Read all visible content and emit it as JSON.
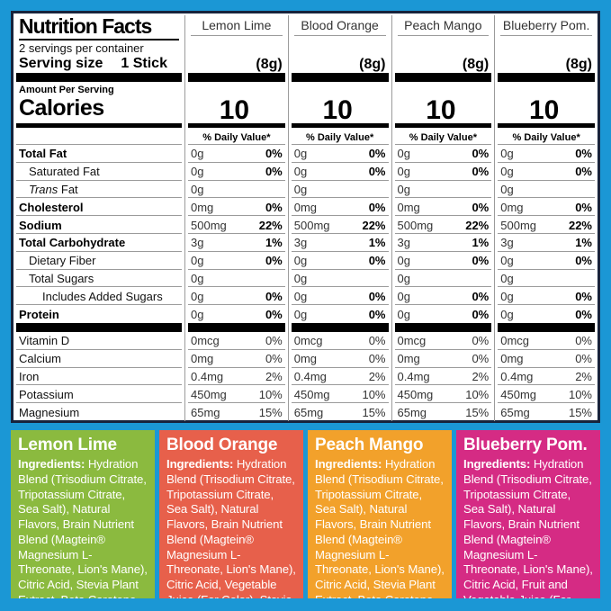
{
  "colors": {
    "background_blue": "#1b97d5",
    "panel_outline": "#17233c",
    "lemon_lime_green": "#8bba3f",
    "blood_orange_coral": "#e7604b",
    "peach_mango_orange": "#f2a12b",
    "blueberry_pom_magenta": "#d52b84"
  },
  "header": {
    "title": "Nutrition Facts",
    "servings": "2 servings per container",
    "serving_size_label": "Serving size",
    "serving_size_value": "1 Stick",
    "amount_per_serving": "Amount Per Serving",
    "calories_label": "Calories",
    "daily_value_label": "% Daily Value*"
  },
  "flavors": [
    {
      "name": "Lemon Lime",
      "serving_weight": "(8g)",
      "calories": "10"
    },
    {
      "name": "Blood Orange",
      "serving_weight": "(8g)",
      "calories": "10"
    },
    {
      "name": "Peach Mango",
      "serving_weight": "(8g)",
      "calories": "10"
    },
    {
      "name": "Blueberry Pom.",
      "serving_weight": "(8g)",
      "calories": "10"
    }
  ],
  "table": {
    "rows": [
      {
        "label": "Total Fat",
        "bold": true,
        "indent": 0,
        "cols": [
          {
            "amt": "0g",
            "pct": "0%"
          },
          {
            "amt": "0g",
            "pct": "0%"
          },
          {
            "amt": "0g",
            "pct": "0%"
          },
          {
            "amt": "0g",
            "pct": "0%"
          }
        ]
      },
      {
        "label": "Saturated Fat",
        "bold": false,
        "indent": 1,
        "cols": [
          {
            "amt": "0g",
            "pct": "0%"
          },
          {
            "amt": "0g",
            "pct": "0%"
          },
          {
            "amt": "0g",
            "pct": "0%"
          },
          {
            "amt": "0g",
            "pct": "0%"
          }
        ]
      },
      {
        "label_italic": "Trans ",
        "label": "Fat",
        "bold": false,
        "indent": 1,
        "cols": [
          {
            "amt": "0g"
          },
          {
            "amt": "0g"
          },
          {
            "amt": "0g"
          },
          {
            "amt": "0g"
          }
        ]
      },
      {
        "label": "Cholesterol",
        "bold": true,
        "indent": 0,
        "cols": [
          {
            "amt": "0mg",
            "pct": "0%"
          },
          {
            "amt": "0mg",
            "pct": "0%"
          },
          {
            "amt": "0mg",
            "pct": "0%"
          },
          {
            "amt": "0mg",
            "pct": "0%"
          }
        ]
      },
      {
        "label": "Sodium",
        "bold": true,
        "indent": 0,
        "cols": [
          {
            "amt": "500mg",
            "pct": "22%"
          },
          {
            "amt": "500mg",
            "pct": "22%"
          },
          {
            "amt": "500mg",
            "pct": "22%"
          },
          {
            "amt": "500mg",
            "pct": "22%"
          }
        ]
      },
      {
        "label": "Total Carbohydrate",
        "bold": true,
        "indent": 0,
        "cols": [
          {
            "amt": "3g",
            "pct": "1%"
          },
          {
            "amt": "3g",
            "pct": "1%"
          },
          {
            "amt": "3g",
            "pct": "1%"
          },
          {
            "amt": "3g",
            "pct": "1%"
          }
        ]
      },
      {
        "label": "Dietary Fiber",
        "bold": false,
        "indent": 1,
        "cols": [
          {
            "amt": "0g",
            "pct": "0%"
          },
          {
            "amt": "0g",
            "pct": "0%"
          },
          {
            "amt": "0g",
            "pct": "0%"
          },
          {
            "amt": "0g",
            "pct": "0%"
          }
        ]
      },
      {
        "label": "Total Sugars",
        "bold": false,
        "indent": 1,
        "cols": [
          {
            "amt": "0g"
          },
          {
            "amt": "0g"
          },
          {
            "amt": "0g"
          },
          {
            "amt": "0g"
          }
        ]
      },
      {
        "label": "Includes Added Sugars",
        "bold": false,
        "indent": 2,
        "cols": [
          {
            "amt": "0g",
            "pct": "0%"
          },
          {
            "amt": "0g",
            "pct": "0%"
          },
          {
            "amt": "0g",
            "pct": "0%"
          },
          {
            "amt": "0g",
            "pct": "0%"
          }
        ]
      },
      {
        "label": "Protein",
        "bold": true,
        "indent": 0,
        "cols": [
          {
            "amt": "0g",
            "pct": "0%"
          },
          {
            "amt": "0g",
            "pct": "0%"
          },
          {
            "amt": "0g",
            "pct": "0%"
          },
          {
            "amt": "0g",
            "pct": "0%"
          }
        ]
      }
    ],
    "vitamins": [
      {
        "label": "Vitamin D",
        "bold": false,
        "indent": 0,
        "cols": [
          {
            "amt": "0mcg",
            "pct": "0%"
          },
          {
            "amt": "0mcg",
            "pct": "0%"
          },
          {
            "amt": "0mcg",
            "pct": "0%"
          },
          {
            "amt": "0mcg",
            "pct": "0%"
          }
        ]
      },
      {
        "label": "Calcium",
        "bold": false,
        "indent": 0,
        "cols": [
          {
            "amt": "0mg",
            "pct": "0%"
          },
          {
            "amt": "0mg",
            "pct": "0%"
          },
          {
            "amt": "0mg",
            "pct": "0%"
          },
          {
            "amt": "0mg",
            "pct": "0%"
          }
        ]
      },
      {
        "label": "Iron",
        "bold": false,
        "indent": 0,
        "cols": [
          {
            "amt": "0.4mg",
            "pct": "2%"
          },
          {
            "amt": "0.4mg",
            "pct": "2%"
          },
          {
            "amt": "0.4mg",
            "pct": "2%"
          },
          {
            "amt": "0.4mg",
            "pct": "2%"
          }
        ]
      },
      {
        "label": "Potassium",
        "bold": false,
        "indent": 0,
        "cols": [
          {
            "amt": "450mg",
            "pct": "10%"
          },
          {
            "amt": "450mg",
            "pct": "10%"
          },
          {
            "amt": "450mg",
            "pct": "10%"
          },
          {
            "amt": "450mg",
            "pct": "10%"
          }
        ]
      },
      {
        "label": "Magnesium",
        "bold": false,
        "indent": 0,
        "cols": [
          {
            "amt": "65mg",
            "pct": "15%"
          },
          {
            "amt": "65mg",
            "pct": "15%"
          },
          {
            "amt": "65mg",
            "pct": "15%"
          },
          {
            "amt": "65mg",
            "pct": "15%"
          }
        ]
      }
    ]
  },
  "ingredients": [
    {
      "title": "Lemon Lime",
      "label": "Ingredients:",
      "color": "#8bba3f",
      "text": "Hydration Blend (Trisodium Citrate, Tripotassium Citrate, Sea Salt), Natural Flavors, Brain Nutrient Blend (Magtein® Magnesium L-Threonate, Lion's Mane), Citric Acid, Stevia Plant Extract, Beta Carotene"
    },
    {
      "title": "Blood Orange",
      "label": "Ingredients:",
      "color": "#e7604b",
      "text": "Hydration Blend (Trisodium Citrate, Tripotassium Citrate, Sea Salt), Natural Flavors, Brain Nutrient Blend (Magtein® Magnesium L-Threonate, Lion's Mane), Citric Acid, Vegetable Juice (For Color), Stevia Plant Extract, Beta Carotene"
    },
    {
      "title": "Peach Mango",
      "label": "Ingredients:",
      "color": "#f2a12b",
      "text": "Hydration Blend (Trisodium Citrate, Tripotassium Citrate, Sea Salt), Natural Flavors, Brain Nutrient Blend (Magtein® Magnesium L-Threonate, Lion's Mane), Citric Acid, Stevia Plant Extract, Beta Carotene, Vegetable Juice (For Color)"
    },
    {
      "title": "Blueberry Pom.",
      "label": "Ingredients:",
      "color": "#d52b84",
      "text": "Hydration Blend (Trisodium Citrate, Tripotassium Citrate, Sea Salt), Natural Flavors, Brain Nutrient Blend (Magtein® Magnesium L-Threonate, Lion's Mane), Citric Acid, Fruit and Vegetable Juice (For Color), Stevia Plant Extract"
    }
  ]
}
